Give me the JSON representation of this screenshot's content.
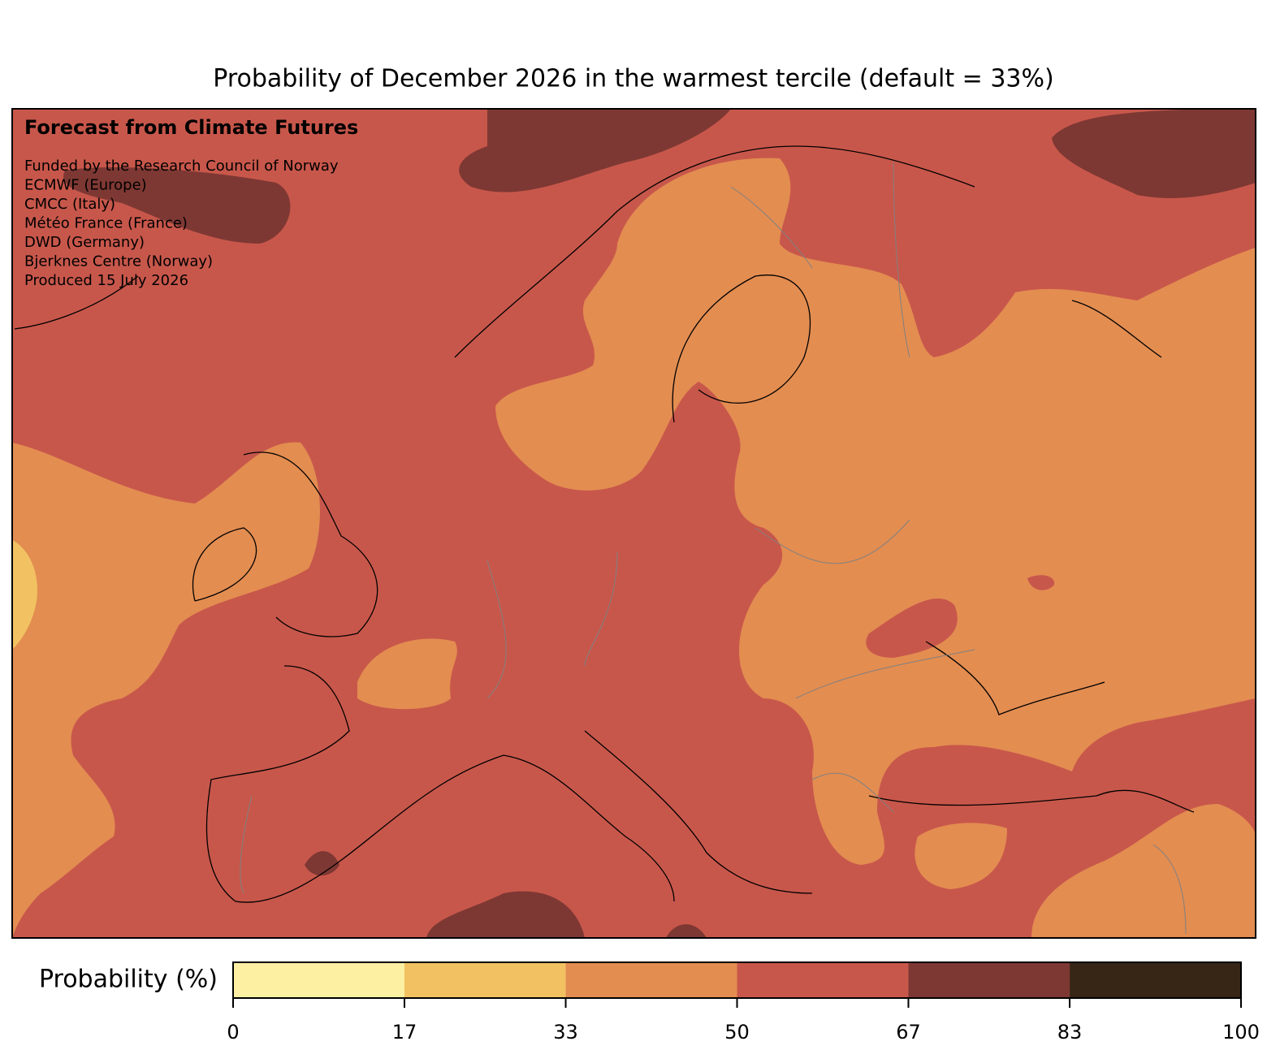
{
  "title": "Probability of December 2026 in the warmest tercile (default = 33%)",
  "map": {
    "heading": "Forecast from Climate Futures",
    "credits": [
      "Funded by the Research Council of Norway",
      "ECMWF (Europe)",
      "CMCC (Italy)",
      "Météo France (France)",
      "DWD (Germany)",
      "Bjerknes Centre (Norway)",
      "Produced 15 July 2026"
    ]
  },
  "colorbar": {
    "label": "Probability (%)",
    "levels": [
      0,
      17,
      33,
      50,
      67,
      83,
      100
    ],
    "colors": [
      "#fdf0a3",
      "#f2c262",
      "#e38d51",
      "#c8574b",
      "#7e3833",
      "#372616"
    ]
  }
}
